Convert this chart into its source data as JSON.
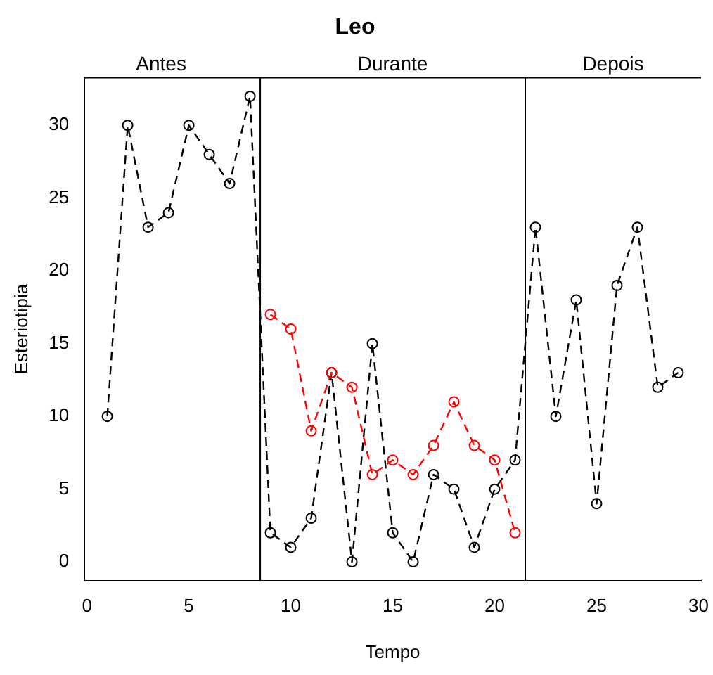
{
  "chart_data": {
    "type": "line",
    "title": "Leo",
    "xlabel": "Tempo",
    "ylabel": "Esteriotipia",
    "series": [
      {
        "color": "#000000",
        "x": [
          1,
          2,
          3,
          4,
          5,
          6,
          7,
          8,
          9,
          10,
          11,
          12,
          13,
          14,
          15,
          16,
          17,
          18,
          19,
          20,
          21,
          22,
          23,
          24,
          25,
          26,
          27,
          28,
          29
        ],
        "values": [
          10,
          30,
          23,
          24,
          30,
          28,
          26,
          32,
          2,
          1,
          3,
          13,
          0,
          15,
          2,
          0,
          6,
          5,
          1,
          5,
          7,
          23,
          10,
          18,
          4,
          19,
          23,
          12,
          13
        ]
      },
      {
        "color": "#ff0000",
        "x": [
          9,
          10,
          11,
          12,
          13,
          14,
          15,
          16,
          17,
          18,
          19,
          20,
          21
        ],
        "values": [
          17,
          16,
          9,
          13,
          12,
          6,
          7,
          6,
          8,
          11,
          8,
          7,
          2
        ]
      }
    ],
    "xlim": [
      -0.12,
      30.12
    ],
    "ylim": [
      -1.28,
      33.28
    ],
    "xticks": [
      0,
      5,
      10,
      15,
      20,
      25,
      30
    ],
    "yticks": [
      0,
      5,
      10,
      15,
      20,
      25,
      30
    ],
    "ref_lines": [
      {
        "axis": "x",
        "value": 8.5,
        "color": "#000000"
      },
      {
        "axis": "x",
        "value": 21.5,
        "color": "#000000"
      }
    ],
    "annotations": [
      "Antes",
      "Durante",
      "Depois"
    ],
    "grid": false,
    "legend": false,
    "marker": "circle",
    "line_style": "dashed"
  }
}
